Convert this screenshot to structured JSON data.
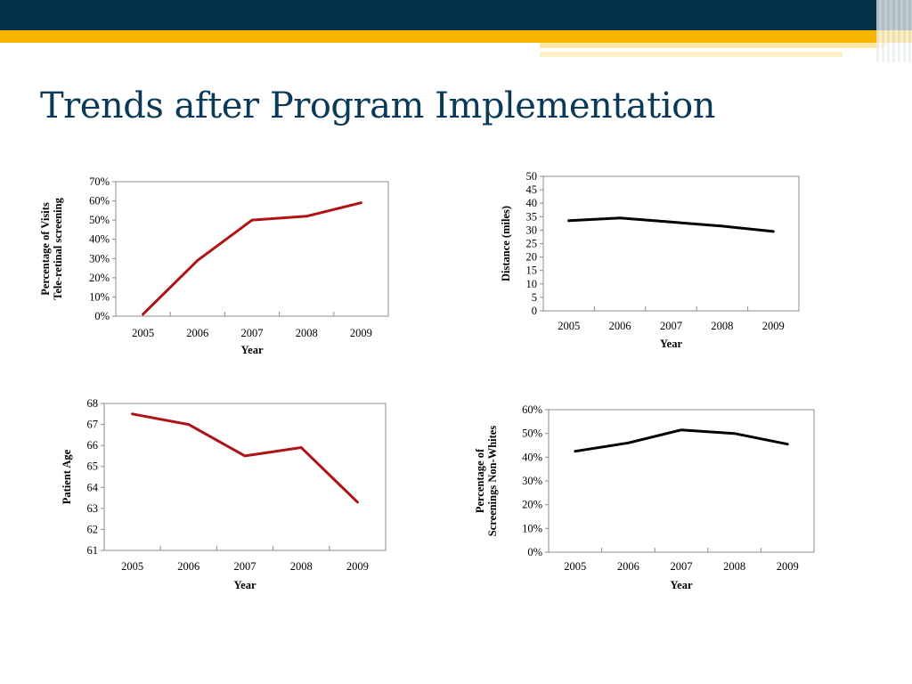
{
  "slide": {
    "title": "Trends after Program Implementation",
    "colors": {
      "header_dark": "#05304a",
      "header_gold": "#f7b500",
      "title": "#0a3a57",
      "series_red": "#b01317",
      "series_black": "#000000"
    }
  },
  "chart_data": [
    {
      "type": "line",
      "categories": [
        "2005",
        "2006",
        "2007",
        "2008",
        "2009"
      ],
      "series": [
        {
          "values": [
            1,
            29,
            50,
            52,
            59
          ],
          "color": "#b01317"
        }
      ],
      "ylim": [
        0,
        70
      ],
      "yticks": [
        0,
        10,
        20,
        30,
        40,
        50,
        60,
        70
      ],
      "ytick_labels": [
        "0%",
        "10%",
        "20%",
        "30%",
        "40%",
        "50%",
        "60%",
        "70%"
      ],
      "ylabel": [
        "Percentage of Visits",
        "Tele-retinal screening"
      ],
      "xlabel": "Year",
      "grid": false
    },
    {
      "type": "line",
      "categories": [
        "2005",
        "2006",
        "2007",
        "2008",
        "2009"
      ],
      "series": [
        {
          "values": [
            33.5,
            34.5,
            33,
            31.5,
            29.5
          ],
          "color": "#000000"
        }
      ],
      "ylim": [
        0,
        50
      ],
      "yticks": [
        0,
        5,
        10,
        15,
        20,
        25,
        30,
        35,
        40,
        45,
        50
      ],
      "ytick_labels": [
        "0",
        "5",
        "10",
        "15",
        "20",
        "25",
        "30",
        "35",
        "40",
        "45",
        "50"
      ],
      "ylabel": [
        "Distance (miles)"
      ],
      "xlabel": "Year",
      "grid": false
    },
    {
      "type": "line",
      "categories": [
        "2005",
        "2006",
        "2007",
        "2008",
        "2009"
      ],
      "series": [
        {
          "values": [
            67.5,
            67,
            65.5,
            65.9,
            63.3
          ],
          "color": "#b01317"
        }
      ],
      "ylim": [
        61,
        68
      ],
      "yticks": [
        61,
        62,
        63,
        64,
        65,
        66,
        67,
        68
      ],
      "ytick_labels": [
        "61",
        "62",
        "63",
        "64",
        "65",
        "66",
        "67",
        "68"
      ],
      "ylabel": [
        "Patient Age"
      ],
      "xlabel": "Year",
      "grid": false
    },
    {
      "type": "line",
      "categories": [
        "2005",
        "2006",
        "2007",
        "2008",
        "2009"
      ],
      "series": [
        {
          "values": [
            42.5,
            46,
            51.5,
            50,
            45.5
          ],
          "color": "#000000"
        }
      ],
      "ylim": [
        0,
        60
      ],
      "yticks": [
        0,
        10,
        20,
        30,
        40,
        50,
        60
      ],
      "ytick_labels": [
        "0%",
        "10%",
        "20%",
        "30%",
        "40%",
        "50%",
        "60%"
      ],
      "ylabel": [
        "Percentage of",
        "Screenings Non-Whites"
      ],
      "xlabel": "Year",
      "grid": false
    }
  ]
}
